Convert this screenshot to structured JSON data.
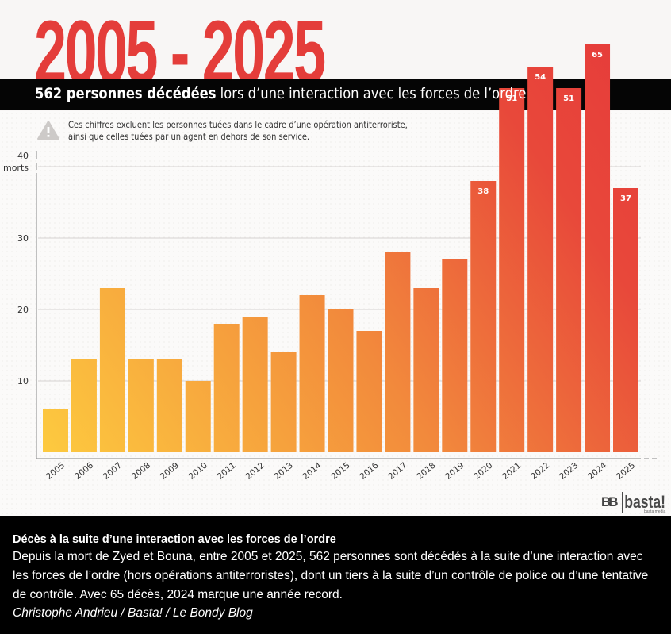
{
  "header": {
    "big_title": "2005 - 2025",
    "subtitle_bold": "562 personnes décédées",
    "subtitle_rest": " lors d’une interaction avec les forces de l’ordre"
  },
  "note": {
    "icon": "warning-icon",
    "text": "Ces chiffres excluent les personnes tuées dans le cadre d’une opération antiterroriste, ainsi que celles tuées par un agent en dehors de son service."
  },
  "colors": {
    "title_red": "#e43d3a",
    "bar_start": "#fdca3f",
    "bar_mid": "#f28a3c",
    "bar_end": "#e63b3a",
    "band": "#050505"
  },
  "chart_data": {
    "type": "bar",
    "title": "2005 - 2025",
    "subtitle": "562 personnes décédées lors d’une interaction avec les forces de l’ordre",
    "xlabel": "",
    "ylabel": "morts",
    "categories": [
      "2005",
      "2006",
      "2007",
      "2008",
      "2009",
      "2010",
      "2011",
      "2012",
      "2013",
      "2014",
      "2015",
      "2016",
      "2017",
      "2018",
      "2019",
      "2020",
      "2021",
      "2022",
      "2023",
      "2024",
      "2025"
    ],
    "values": [
      6,
      13,
      23,
      13,
      13,
      10,
      18,
      19,
      14,
      22,
      20,
      17,
      28,
      23,
      27,
      38,
      51,
      54,
      51,
      65,
      37
    ],
    "data_labels": {
      "2020": "38",
      "2021": "51",
      "2022": "54",
      "2023": "51",
      "2024": "65",
      "2025": "37"
    },
    "yticks": [
      "10",
      "20",
      "30",
      "40"
    ],
    "ylim": [
      0,
      40
    ],
    "note": "bars above 40 extend beyond the top gridline (axis truncated)",
    "grid": true,
    "legend": "none"
  },
  "logo": {
    "mark": "BB",
    "word": "basta!",
    "sub": "basta media"
  },
  "caption": {
    "title": "Décès à la suite d’une interaction avec les forces de l’ordre",
    "body": "Depuis la mort de Zyed et Bouna, entre 2005 et 2025, 562 personnes sont décédés à la suite d’une interaction avec les forces de l’ordre (hors opérations antiterroristes), dont un tiers à la suite d’un contrôle de police ou d’une tentative de contrôle. Avec 65 décès, 2024 marque une année record.",
    "credit": "Christophe Andrieu / Basta! / Le Bondy Blog"
  }
}
